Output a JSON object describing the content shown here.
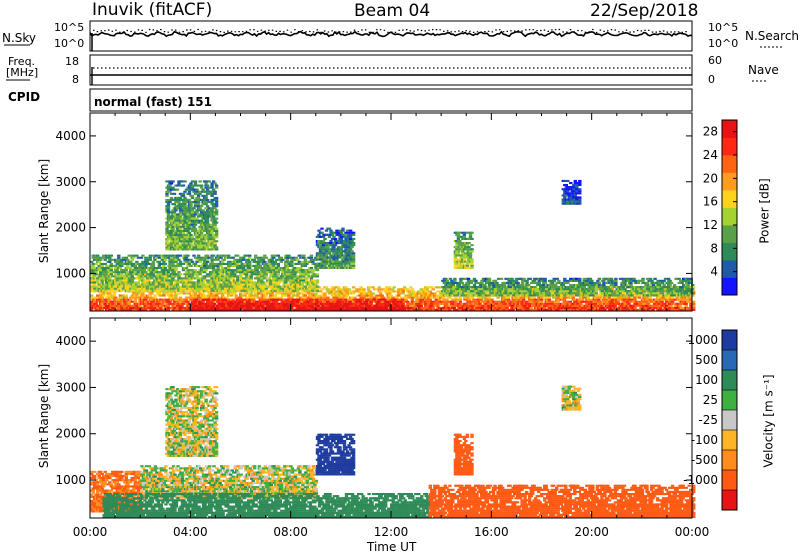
{
  "header": {
    "station": "Inuvik (fitACF)",
    "beam": "Beam 04",
    "date": "22/Sep/2018"
  },
  "top_panel": {
    "left_label": "N.Sky",
    "right_label": "N.Search",
    "left_ticks": [
      "10^5",
      "10^0"
    ],
    "right_ticks": [
      "10^5",
      "10^0"
    ]
  },
  "freq_panel": {
    "left_label_1": "Freq.",
    "left_label_2": "[MHz]",
    "right_label": "Nave",
    "left_ticks": [
      "18",
      "8"
    ],
    "right_ticks": [
      "60",
      "0"
    ]
  },
  "cpid_panel": {
    "label": "CPID",
    "text": "normal (fast) 151"
  },
  "x_axis": {
    "label": "Time UT",
    "ticks": [
      "00:00",
      "04:00",
      "08:00",
      "12:00",
      "16:00",
      "20:00",
      "00:00"
    ]
  },
  "power_panel": {
    "ylabel": "Slant Range [km]",
    "cbar_label": "Power [dB]",
    "cbar_ticks": [
      "28",
      "24",
      "20",
      "16",
      "12",
      "8",
      "4"
    ]
  },
  "velocity_panel": {
    "ylabel": "Slant Range [km]",
    "cbar_label": "Velocity [m s⁻¹]",
    "cbar_ticks": [
      "1000",
      "500",
      "100",
      "25",
      "-25",
      "-100",
      "-500",
      "-1000"
    ]
  },
  "chart_data": [
    {
      "type": "heatmap",
      "title": "Power",
      "xlabel": "Time UT",
      "ylabel": "Slant Range [km]",
      "xlim": [
        0,
        24
      ],
      "ylim": [
        180,
        4500
      ],
      "yticks": [
        1000,
        2000,
        3000,
        4000
      ],
      "colorbar": {
        "label": "Power [dB]",
        "range": [
          0,
          30
        ],
        "ticks": [
          4,
          8,
          12,
          16,
          20,
          24,
          28
        ],
        "colors": [
          "#1414ff",
          "#1f5aa8",
          "#2e8b57",
          "#5aa048",
          "#a5d232",
          "#ffd21e",
          "#ff9c1e",
          "#ff6414",
          "#ff2814",
          "#e61414"
        ]
      },
      "regions": [
        {
          "t_start": 0.0,
          "t_end": 24.0,
          "r_low": 180,
          "r_high": 700,
          "value_db": 22
        },
        {
          "t_start": 4.0,
          "t_end": 12.5,
          "r_low": 180,
          "r_high": 450,
          "value_db": 28
        },
        {
          "t_start": 0.0,
          "t_end": 9.0,
          "r_low": 600,
          "r_high": 1400,
          "value_db": 14
        },
        {
          "t_start": 3.0,
          "t_end": 5.0,
          "r_low": 1500,
          "r_high": 3000,
          "value_db": 12
        },
        {
          "t_start": 9.0,
          "t_end": 10.5,
          "r_low": 1100,
          "r_high": 2000,
          "value_db": 10
        },
        {
          "t_start": 14.5,
          "t_end": 15.2,
          "r_low": 1100,
          "r_high": 1900,
          "value_db": 14
        },
        {
          "t_start": 18.8,
          "t_end": 19.5,
          "r_low": 2500,
          "r_high": 3000,
          "value_db": 6
        },
        {
          "t_start": 14.0,
          "t_end": 24.0,
          "r_low": 500,
          "r_high": 900,
          "value_db": 12
        }
      ]
    },
    {
      "type": "heatmap",
      "title": "Velocity",
      "xlabel": "Time UT",
      "ylabel": "Slant Range [km]",
      "xlim": [
        0,
        24
      ],
      "ylim": [
        180,
        4500
      ],
      "yticks": [
        1000,
        2000,
        3000,
        4000
      ],
      "colorbar": {
        "label": "Velocity [m s⁻¹]",
        "range": [
          -1200,
          1200
        ],
        "ticks": [
          1000,
          500,
          100,
          25,
          -25,
          -100,
          -500,
          -1000
        ],
        "colors": [
          "#1e3ca0",
          "#2868b4",
          "#2e8b57",
          "#3cb040",
          "#c8c8c8",
          "#ffb428",
          "#ff8c1e",
          "#ff5a14",
          "#e61414"
        ]
      },
      "regions": [
        {
          "t_start": 0.0,
          "t_end": 2.0,
          "r_low": 300,
          "r_high": 1200,
          "value_ms": -300
        },
        {
          "t_start": 2.0,
          "t_end": 9.0,
          "r_low": 600,
          "r_high": 1300,
          "value_ms": 0
        },
        {
          "t_start": 0.5,
          "t_end": 13.5,
          "r_low": 180,
          "r_high": 700,
          "value_ms": 150
        },
        {
          "t_start": 13.5,
          "t_end": 24.0,
          "r_low": 180,
          "r_high": 900,
          "value_ms": -400
        },
        {
          "t_start": 9.0,
          "t_end": 10.5,
          "r_low": 1100,
          "r_high": 2000,
          "value_ms": 900
        },
        {
          "t_start": 14.5,
          "t_end": 15.2,
          "r_low": 1100,
          "r_high": 2000,
          "value_ms": -500
        },
        {
          "t_start": 3.0,
          "t_end": 5.0,
          "r_low": 1500,
          "r_high": 3000,
          "value_ms": 0
        },
        {
          "t_start": 18.8,
          "t_end": 19.5,
          "r_low": 2500,
          "r_high": 3000,
          "value_ms": 0
        }
      ]
    }
  ]
}
